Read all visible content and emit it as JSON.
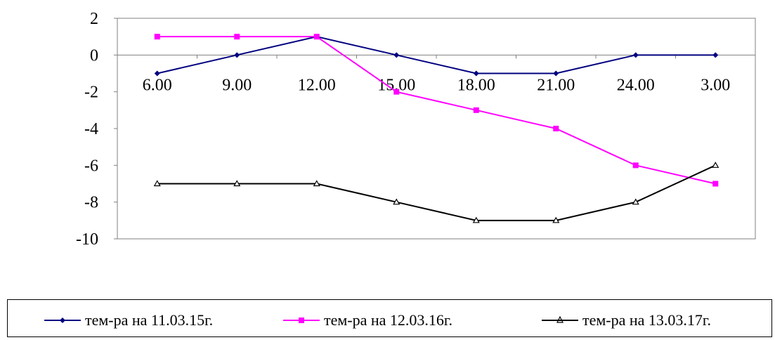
{
  "chart_data": {
    "type": "line",
    "categories": [
      "6.00",
      "9.00",
      "12.00",
      "15.00",
      "18.00",
      "21.00",
      "24.00",
      "3.00"
    ],
    "ylim": [
      -10,
      2
    ],
    "yticks": [
      2,
      0,
      -2,
      -4,
      -6,
      -8,
      -10
    ],
    "legend_position": "bottom",
    "series": [
      {
        "name": "тем-ра на 11.03.15г.",
        "values": [
          -1,
          0,
          1,
          0,
          -1,
          -1,
          0,
          0
        ],
        "color": "#000080",
        "marker": "diamond"
      },
      {
        "name": "тем-ра на 12.03.16г.",
        "values": [
          1,
          1,
          1,
          -2,
          -3,
          -4,
          -6,
          -7
        ],
        "color": "#ff00ff",
        "marker": "square"
      },
      {
        "name": "тем-ра на 13.03.17г.",
        "values": [
          -7,
          -7,
          -7,
          -8,
          -9,
          -9,
          -8,
          -6
        ],
        "color": "#000000",
        "marker": "triangle"
      }
    ]
  }
}
